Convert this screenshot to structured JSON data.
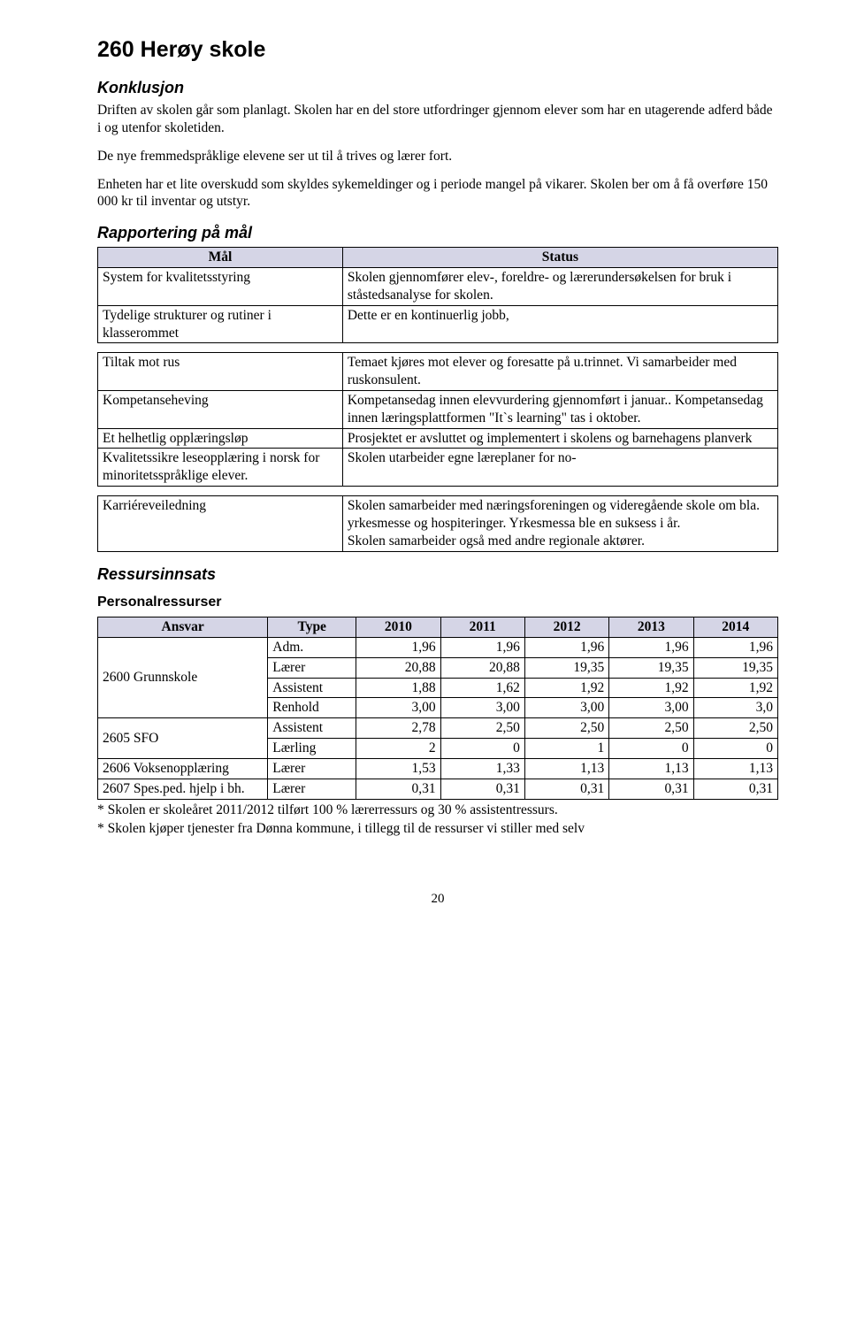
{
  "title": "260 Herøy skole",
  "sections": {
    "konklusjon": {
      "heading": "Konklusjon",
      "p1": "Driften av skolen går som planlagt. Skolen har en del store utfordringer gjennom elever som har en utagerende adferd både i og utenfor skoletiden.",
      "p2": "De nye fremmedspråklige elevene ser ut til å trives og lærer fort.",
      "p3": "Enheten har et lite overskudd som skyldes sykemeldinger og i periode mangel på vikarer. Skolen ber om å få overføre 150 000 kr til inventar og utstyr."
    },
    "rapportering": {
      "heading": "Rapportering på mål",
      "col_mal": "Mål",
      "col_status": "Status",
      "rows_a": [
        {
          "mal": "System for kvalitetsstyring",
          "status": "Skolen gjennomfører elev-, foreldre- og lærerundersøkelsen for bruk i ståstedsanalyse for skolen."
        },
        {
          "mal": "Tydelige strukturer og rutiner i klasserommet",
          "status": "Dette er en kontinuerlig jobb,"
        }
      ],
      "rows_b": [
        {
          "mal": "Tiltak mot rus",
          "status": "Temaet kjøres mot elever og foresatte på u.trinnet. Vi samarbeider med ruskonsulent."
        },
        {
          "mal": "Kompetanseheving",
          "status": "Kompetansedag innen elevvurdering gjennomført i januar.. Kompetansedag innen læringsplattformen \"It`s learning\" tas i oktober."
        },
        {
          "mal": "Et helhetlig opplæringsløp",
          "status": "Prosjektet er avsluttet og implementert i skolens og barnehagens planverk"
        },
        {
          "mal": "Kvalitetssikre leseopplæring i norsk for minoritetsspråklige elever.",
          "status": "Skolen utarbeider egne læreplaner for no-"
        }
      ],
      "rows_c": [
        {
          "mal": "Karriéreveiledning",
          "status": "Skolen samarbeider med næringsforeningen og videregående skole om bla. yrkesmesse og hospiteringer. Yrkesmessa ble en suksess i år.\nSkolen samarbeider også med andre regionale aktører."
        }
      ]
    },
    "ressurs": {
      "heading": "Ressursinnsats",
      "sub": "Personalressurser",
      "cols": {
        "ansvar": "Ansvar",
        "type": "Type",
        "y2010": "2010",
        "y2011": "2011",
        "y2012": "2012",
        "y2013": "2013",
        "y2014": "2014"
      },
      "rows": [
        {
          "ansvar": "2600 Grunnskole",
          "span": 4,
          "type": "Adm.",
          "v": [
            "1,96",
            "1,96",
            "1,96",
            "1,96",
            "1,96"
          ]
        },
        {
          "type": "Lærer",
          "v": [
            "20,88",
            "20,88",
            "19,35",
            "19,35",
            "19,35"
          ]
        },
        {
          "type": "Assistent",
          "v": [
            "1,88",
            "1,62",
            "1,92",
            "1,92",
            "1,92"
          ]
        },
        {
          "type": "Renhold",
          "v": [
            "3,00",
            "3,00",
            "3,00",
            "3,00",
            "3,0"
          ]
        },
        {
          "ansvar": "2605 SFO",
          "span": 2,
          "type": "Assistent",
          "v": [
            "2,78",
            "2,50",
            "2,50",
            "2,50",
            "2,50"
          ]
        },
        {
          "type": "Lærling",
          "v": [
            "2",
            "0",
            "1",
            "0",
            "0"
          ]
        },
        {
          "ansvar": "2606 Voksenopplæring",
          "span": 1,
          "type": "Lærer",
          "v": [
            "1,53",
            "1,33",
            "1,13",
            "1,13",
            "1,13"
          ]
        },
        {
          "ansvar": "2607 Spes.ped. hjelp i bh.",
          "span": 1,
          "type": "Lærer",
          "v": [
            "0,31",
            "0,31",
            "0,31",
            "0,31",
            "0,31"
          ]
        }
      ],
      "foot1": "* Skolen er skoleåret 2011/2012 tilført 100 %  lærerressurs og 30 % assistentressurs.",
      "foot2": "* Skolen kjøper tjenester fra Dønna kommune, i tillegg til de ressurser vi stiller med selv"
    }
  },
  "page_number": "20"
}
